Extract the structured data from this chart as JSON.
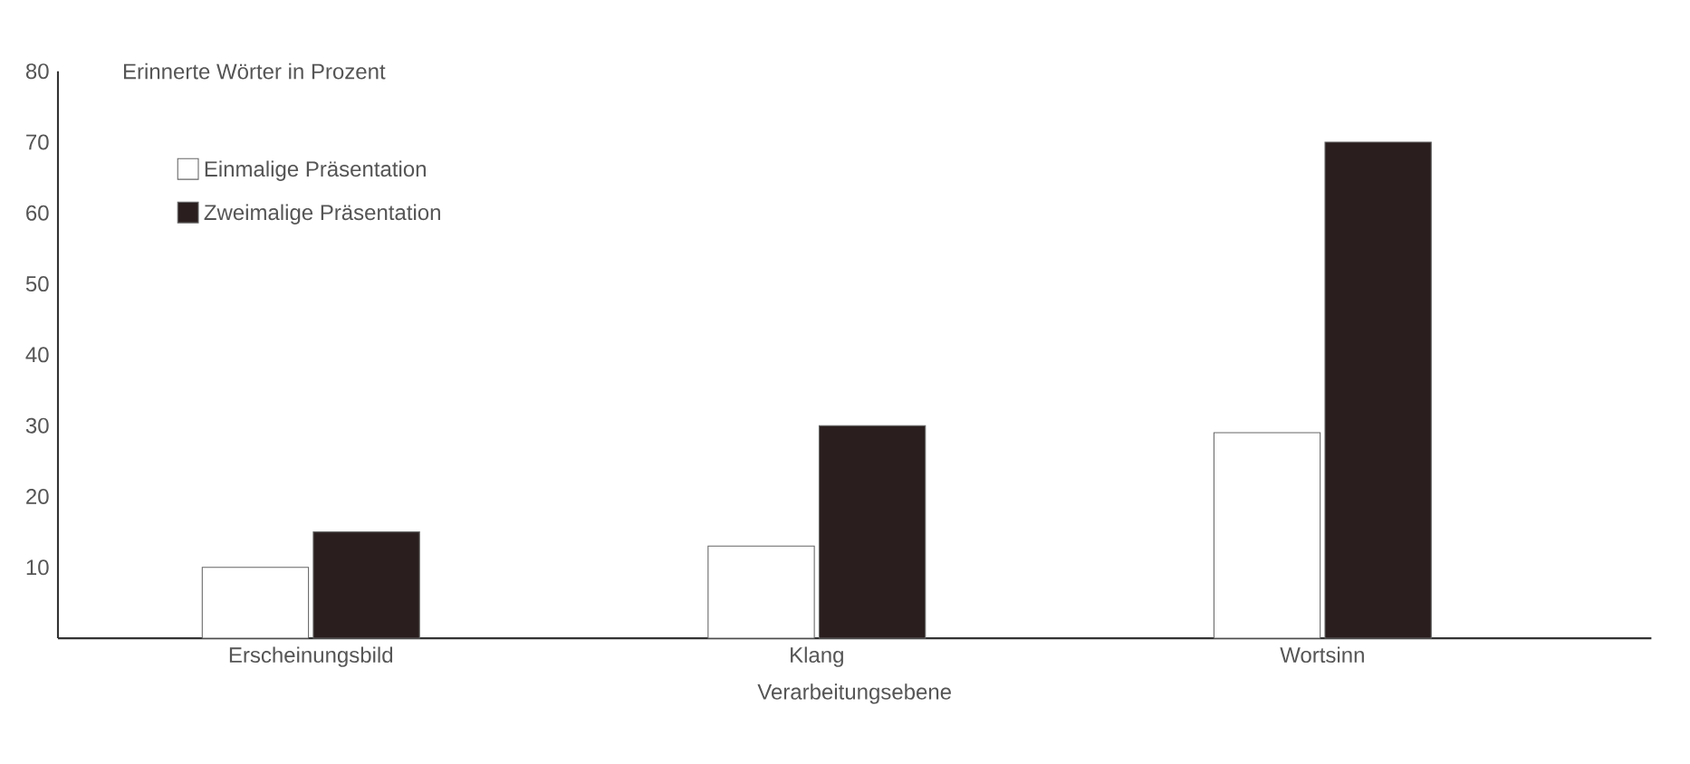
{
  "chart_data": {
    "type": "bar",
    "categories": [
      "Erscheinungsbild",
      "Klang",
      "Wortsinn"
    ],
    "series": [
      {
        "name": "Einmalige Präsentation",
        "color": "#ffffff",
        "values": [
          10,
          13,
          29
        ]
      },
      {
        "name": "Zweimalige Präsentation",
        "color": "#2a1e1e",
        "values": [
          15,
          30,
          70
        ]
      }
    ],
    "xlabel": "Verarbeitungsebene",
    "ylabel": "Erinnerte Wörter in Prozent",
    "ylim": [
      0,
      80
    ],
    "yticks": [
      10,
      20,
      30,
      40,
      50,
      60,
      70,
      80
    ],
    "legend": "top left",
    "grid": false
  }
}
